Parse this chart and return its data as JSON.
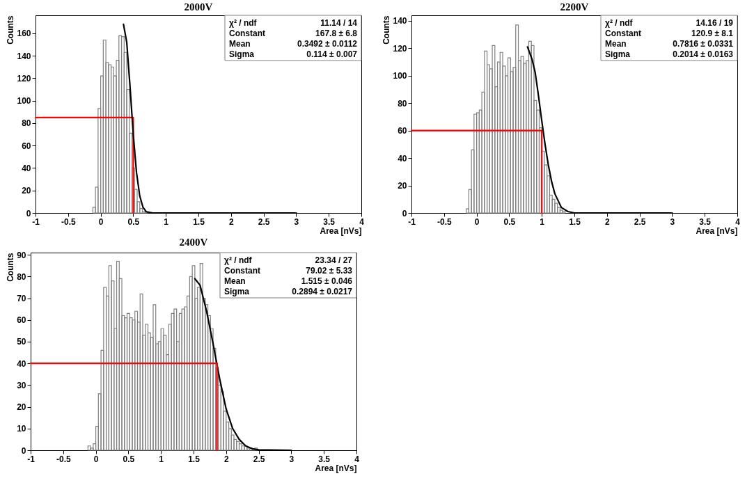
{
  "chart_data": [
    {
      "type": "histogram",
      "title": "2000V",
      "xlabel": "Area [nVs]",
      "ylabel": "Counts",
      "color": "#808080",
      "bins": [
        -0.12,
        -0.08,
        -0.04,
        0,
        0.04,
        0.08,
        0.12,
        0.16,
        0.2,
        0.24,
        0.28,
        0.32,
        0.36,
        0.4,
        0.44,
        0.48,
        0.52,
        0.56,
        0.6,
        0.64,
        0.68,
        0.72
      ],
      "values": [
        5,
        23,
        93,
        122,
        154,
        134,
        132,
        130,
        122,
        136,
        158,
        157,
        143,
        110,
        71,
        40,
        21,
        10,
        4,
        1,
        1
      ],
      "xlim": [
        -1,
        4
      ],
      "xticks": [
        -1,
        -0.5,
        0,
        0.5,
        1,
        1.5,
        2,
        2.5,
        3,
        3.5,
        4
      ],
      "ylim": [
        0,
        176
      ],
      "yticks": [
        0,
        20,
        40,
        60,
        80,
        100,
        120,
        140,
        160
      ],
      "series": [
        {
          "type": "line",
          "color": "#ff0000",
          "x": [
            -1,
            0.5,
            0.5
          ],
          "values": [
            85,
            85,
            0
          ]
        },
        {
          "type": "line",
          "color": "#000000",
          "x": [
            0.35,
            0.4,
            0.45,
            0.5,
            0.55,
            0.6,
            0.65,
            0.7,
            0.8,
            3
          ],
          "values": [
            168,
            152,
            113,
            70,
            36,
            15,
            5,
            1,
            0,
            0
          ]
        }
      ],
      "annotations": [
        "χ² / ndf",
        "11.14 / 14",
        "Constant",
        "167.8 ± 6.8",
        "Mean",
        "0.3492 ± 0.0112",
        "Sigma",
        "0.114 ± 0.007"
      ]
    },
    {
      "type": "histogram",
      "title": "2200V",
      "xlabel": "Area [nVs]",
      "ylabel": "Counts",
      "color": "#808080",
      "bins": [
        -0.16,
        -0.12,
        -0.08,
        -0.04,
        0,
        0.04,
        0.08,
        0.12,
        0.16,
        0.2,
        0.24,
        0.28,
        0.32,
        0.36,
        0.4,
        0.44,
        0.48,
        0.52,
        0.56,
        0.6,
        0.64,
        0.68,
        0.72,
        0.76,
        0.8,
        0.84,
        0.88,
        0.92,
        0.96,
        1,
        1.04,
        1.08,
        1.12,
        1.16,
        1.2,
        1.24,
        1.28,
        1.32,
        1.36
      ],
      "values": [
        3,
        17,
        46,
        72,
        73,
        75,
        88,
        118,
        108,
        105,
        122,
        92,
        110,
        117,
        107,
        100,
        113,
        103,
        106,
        137,
        111,
        114,
        109,
        111,
        125,
        122,
        82,
        75,
        62,
        45,
        35,
        27,
        13,
        10,
        7,
        4,
        2,
        1
      ],
      "xlim": [
        -1,
        4
      ],
      "xticks": [
        -1,
        -0.5,
        0,
        0.5,
        1,
        1.5,
        2,
        2.5,
        3,
        3.5,
        4
      ],
      "ylim": [
        0,
        144
      ],
      "yticks": [
        0,
        20,
        40,
        60,
        80,
        100,
        120,
        140
      ],
      "series": [
        {
          "type": "line",
          "color": "#000000",
          "x": [
            0.78,
            0.85,
            0.9,
            0.95,
            1,
            1.05,
            1.1,
            1.15,
            1.2,
            1.3,
            1.4,
            1.5,
            3
          ],
          "values": [
            121,
            112,
            102,
            85,
            67,
            50,
            35,
            23,
            14,
            4,
            1,
            0,
            0
          ]
        },
        {
          "type": "line",
          "color": "#ff0000",
          "x": [
            -1,
            1,
            1
          ],
          "values": [
            60,
            60,
            0
          ]
        }
      ],
      "annotations": [
        "χ² / ndf",
        "14.16 / 19",
        "Constant",
        "120.9 ± 8.1",
        "Mean",
        "0.7816 ± 0.0331",
        "Sigma",
        "0.2014 ± 0.0163"
      ]
    },
    {
      "type": "histogram",
      "title": "2400V",
      "xlabel": "Area [nVs]",
      "ylabel": "Counts",
      "color": "#808080",
      "bins": [
        -0.12,
        -0.08,
        -0.04,
        0,
        0.04,
        0.08,
        0.12,
        0.16,
        0.2,
        0.24,
        0.28,
        0.32,
        0.36,
        0.4,
        0.44,
        0.48,
        0.52,
        0.56,
        0.6,
        0.64,
        0.68,
        0.72,
        0.76,
        0.8,
        0.84,
        0.88,
        0.92,
        0.96,
        1,
        1.04,
        1.08,
        1.12,
        1.16,
        1.2,
        1.24,
        1.28,
        1.32,
        1.36,
        1.4,
        1.44,
        1.48,
        1.52,
        1.56,
        1.6,
        1.64,
        1.68,
        1.72,
        1.76,
        1.8,
        1.84,
        1.88,
        1.92,
        1.96,
        2,
        2.04,
        2.08,
        2.12,
        2.16,
        2.2,
        2.24,
        2.28,
        2.32,
        2.36,
        2.4,
        2.44,
        2.48
      ],
      "values": [
        2,
        1,
        3,
        11,
        26,
        46,
        75,
        71,
        85,
        78,
        56,
        87,
        79,
        62,
        61,
        63,
        61,
        60,
        64,
        59,
        72,
        53,
        58,
        54,
        52,
        67,
        49,
        50,
        56,
        53,
        44,
        58,
        63,
        65,
        50,
        63,
        65,
        66,
        71,
        80,
        85,
        70,
        75,
        86,
        70,
        67,
        62,
        56,
        47,
        38,
        30,
        27,
        18,
        13,
        10,
        7,
        5,
        4,
        3,
        2,
        2,
        1,
        1,
        0,
        1
      ],
      "xlim": [
        -1,
        4
      ],
      "xticks": [
        -1,
        -0.5,
        0,
        0.5,
        1,
        1.5,
        2,
        2.5,
        3,
        3.5,
        4
      ],
      "ylim": [
        0,
        91
      ],
      "yticks": [
        0,
        10,
        20,
        30,
        40,
        50,
        60,
        70,
        80,
        90
      ],
      "series": [
        {
          "type": "line",
          "color": "#000000",
          "x": [
            1.52,
            1.6,
            1.7,
            1.8,
            1.9,
            2,
            2.1,
            2.2,
            2.3,
            2.4,
            2.5,
            3
          ],
          "values": [
            79,
            76,
            64,
            49,
            33,
            19,
            10,
            5,
            2,
            0.7,
            0.2,
            0
          ]
        },
        {
          "type": "line",
          "color": "#ff0000",
          "x": [
            -1,
            1.86,
            1.86
          ],
          "values": [
            40,
            40,
            0
          ]
        }
      ],
      "annotations": [
        "χ² / ndf",
        "23.34 / 27",
        "Constant",
        "79.02 ± 5.33",
        "Mean",
        "1.515 ± 0.046",
        "Sigma",
        "0.2894 ± 0.0217"
      ]
    }
  ]
}
